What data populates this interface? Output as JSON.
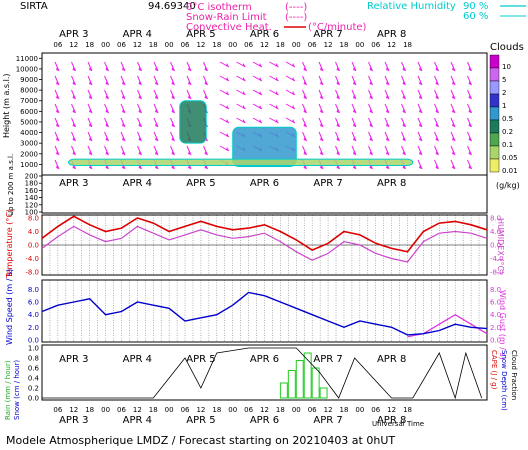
{
  "header": {
    "station": "SIRTA",
    "coords": "94.69340",
    "legend_isotherm": "0°C isotherm",
    "legend_isotherm_sym": "(----)",
    "legend_snowrain": "Snow-Rain Limit",
    "legend_snowrain_sym": "(----)",
    "legend_convective": "Convective Heat.",
    "legend_convective_unit": "(°C/minute)",
    "legend_rh": "Relative Humidity",
    "legend_rh_90": "90 %",
    "legend_rh_60": "60 %"
  },
  "footer": {
    "title": "Modele Atmospherique LMDZ / Forecast starting on 20210403 at 0hUT",
    "xlabel": "Universal Time"
  },
  "axes": {
    "days": [
      "APR  3",
      "APR  4",
      "APR  5",
      "APR  6",
      "APR  7",
      "APR  8"
    ],
    "hours": [
      "06",
      "12",
      "18",
      "00",
      "06",
      "12",
      "18",
      "00",
      "06",
      "12",
      "18",
      "00",
      "06",
      "12",
      "18",
      "00",
      "06",
      "12",
      "18",
      "00",
      "06",
      "12",
      "18"
    ],
    "height_label": "Height  (m a.s.l.)",
    "height_sub_label": "Up to 200 m a.s.l.",
    "height_ticks": [
      "11000",
      "10000",
      "9000",
      "8000",
      "7000",
      "6000",
      "5000",
      "4000",
      "3000",
      "2000",
      "1000"
    ],
    "height_low_ticks": [
      "200",
      "180",
      "160",
      "140",
      "120",
      "100"
    ],
    "temp_label": "Temperature (°C)",
    "humidex_label": "HUMIDEX (°C)",
    "temp_ticks": [
      "8.0",
      "4.0",
      "0.0",
      "-4.0",
      "-8.0"
    ],
    "humidex_ticks": [
      "8.0",
      "4.0",
      "0.0",
      "-4.0",
      "-8.0"
    ],
    "wind_label": "Wind Speed (m / s)",
    "gust_label": "Wind Gust (m / s)",
    "wind_ticks": [
      "8.0",
      "6.0",
      "4.0",
      "2.0",
      "0.0"
    ],
    "gust_ticks": [
      "8.0",
      "6.0",
      "4.0",
      "2.0",
      "0.0"
    ],
    "rain_label": "Rain (mm / hour)",
    "snow_label": "Snow (cm / hour)",
    "rain_ticks": [
      "1.0",
      "0.8",
      "0.6",
      "0.4",
      "0.2",
      "0.0"
    ],
    "cape_label": "CAPE (J / g)",
    "snowdepth_label": "Snow Depth (cm)",
    "cloud_label": "Cloud Fraction"
  },
  "clouds_colorbar": {
    "title": "Clouds",
    "unit": "(g/kg)",
    "levels": [
      "10",
      "5",
      "2",
      "1",
      "0.5",
      "0.2",
      "0.1",
      "0.05",
      "0.01"
    ],
    "colors": [
      "#cc00cc",
      "#cc66ee",
      "#9999ff",
      "#3333cc",
      "#3399cc",
      "#1e7a5c",
      "#4ea64e",
      "#a9d66b",
      "#eeee66"
    ]
  },
  "colors": {
    "temperature": "#dd0000",
    "humidex": "#cc44cc",
    "wind": "#0000cc",
    "gust": "#dd33dd",
    "rain": "#22cc22",
    "cloud_fraction": "#000000",
    "wind_arrows": "#ee22ee",
    "rh": "#00cccc"
  },
  "chart_data": {
    "type": "line",
    "x_unit": "hours since 2021-04-03 00:00 UT",
    "temperature": {
      "x": [
        0,
        6,
        12,
        18,
        24,
        30,
        36,
        42,
        48,
        54,
        60,
        66,
        72,
        78,
        84,
        90,
        96,
        102,
        108,
        114,
        120,
        126,
        132,
        138,
        144,
        150,
        156,
        162,
        168
      ],
      "y": [
        2.0,
        5.5,
        8.5,
        6.0,
        4.0,
        5.0,
        8.0,
        6.5,
        4.0,
        5.5,
        7.0,
        5.5,
        4.5,
        5.0,
        6.0,
        4.0,
        1.5,
        -1.5,
        0.5,
        4.0,
        3.0,
        0.5,
        -1.0,
        -2.0,
        4.0,
        6.5,
        7.0,
        6.0,
        4.5
      ]
    },
    "humidex": {
      "x": [
        0,
        6,
        12,
        18,
        24,
        30,
        36,
        42,
        48,
        54,
        60,
        66,
        72,
        78,
        84,
        90,
        96,
        102,
        108,
        114,
        120,
        126,
        132,
        138,
        144,
        150,
        156,
        162,
        168
      ],
      "y": [
        -1.0,
        2.5,
        5.5,
        3.0,
        1.0,
        2.0,
        5.5,
        3.5,
        1.5,
        3.0,
        4.5,
        3.0,
        2.0,
        2.5,
        3.5,
        1.0,
        -2.0,
        -4.5,
        -2.5,
        1.0,
        0.0,
        -2.5,
        -4.0,
        -5.0,
        1.0,
        3.5,
        4.0,
        3.5,
        2.0
      ]
    },
    "wind_speed": {
      "x": [
        0,
        6,
        12,
        18,
        24,
        30,
        36,
        42,
        48,
        54,
        60,
        66,
        72,
        78,
        84,
        90,
        96,
        102,
        108,
        114,
        120,
        126,
        132,
        138,
        144,
        150,
        156,
        162,
        168
      ],
      "y": [
        4.5,
        5.5,
        6.0,
        6.5,
        4.0,
        4.5,
        6.0,
        5.5,
        5.0,
        3.0,
        3.5,
        4.0,
        5.5,
        7.5,
        7.0,
        6.0,
        5.0,
        4.0,
        3.0,
        2.0,
        3.0,
        2.5,
        2.0,
        0.8,
        1.0,
        1.5,
        2.5,
        2.0,
        1.8
      ]
    },
    "wind_gust": {
      "x": [
        138,
        144,
        150,
        156,
        162,
        168
      ],
      "y": [
        0.5,
        1.0,
        2.5,
        4.0,
        2.5,
        1.0
      ]
    },
    "rain": {
      "x": [
        90,
        93,
        96,
        99,
        102,
        105
      ],
      "y": [
        0.3,
        0.55,
        0.75,
        0.9,
        0.6,
        0.2
      ]
    },
    "cloud_fraction": {
      "x": [
        0,
        30,
        42,
        54,
        60,
        66,
        78,
        96,
        105,
        112,
        118,
        132,
        140,
        150,
        156,
        160,
        166
      ],
      "y": [
        0.0,
        0.0,
        0.0,
        0.8,
        0.2,
        0.9,
        1.0,
        1.0,
        0.5,
        0.0,
        0.8,
        0.0,
        0.0,
        0.9,
        0.0,
        0.9,
        0.0
      ]
    },
    "cloud_water_regions": [
      {
        "x0": 52,
        "x1": 62,
        "z0": 3000,
        "z1": 7000,
        "q": 0.2
      },
      {
        "x0": 72,
        "x1": 96,
        "z0": 800,
        "z1": 4500,
        "q": 0.5
      },
      {
        "x0": 10,
        "x1": 140,
        "z0": 900,
        "z1": 1500,
        "q": 0.05
      }
    ],
    "xlim": [
      0,
      168
    ],
    "temp_ylim": [
      -8,
      8
    ],
    "wind_ylim": [
      0,
      9
    ],
    "rain_ylim": [
      0,
      1.0
    ],
    "height_ylim": [
      0,
      11500
    ]
  }
}
